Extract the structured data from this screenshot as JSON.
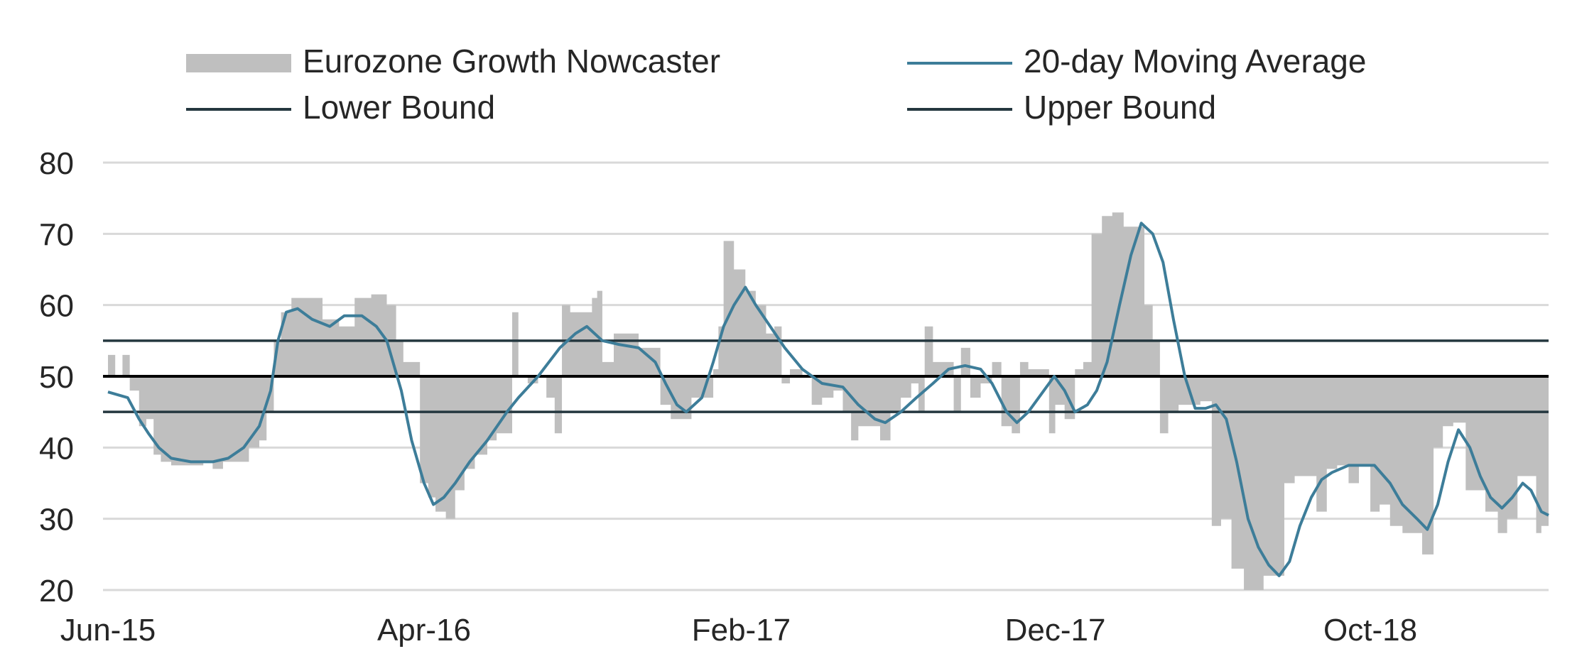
{
  "chart_data": {
    "type": "area",
    "title": "",
    "xlabel": "",
    "ylabel": "",
    "ylim": [
      20,
      80
    ],
    "yticks": [
      20,
      30,
      40,
      50,
      60,
      70,
      80
    ],
    "xlim": [
      "2015-06-01",
      "2019-02-28"
    ],
    "xticks": [
      {
        "date": "2015-06-01",
        "label": "Jun-15"
      },
      {
        "date": "2016-04-01",
        "label": "Apr-16"
      },
      {
        "date": "2017-02-01",
        "label": "Feb-17"
      },
      {
        "date": "2017-12-01",
        "label": "Dec-17"
      },
      {
        "date": "2018-10-01",
        "label": "Oct-18"
      }
    ],
    "grid": "horizontal",
    "legend_position": "top",
    "area_baseline": 50,
    "series": [
      {
        "name": "Eurozone Growth Nowcaster",
        "kind": "area",
        "color": "#bfbfbf",
        "points": [
          [
            "2015-06-01",
            53
          ],
          [
            "2015-06-08",
            50
          ],
          [
            "2015-06-15",
            53
          ],
          [
            "2015-06-22",
            48
          ],
          [
            "2015-07-01",
            43
          ],
          [
            "2015-07-08",
            44
          ],
          [
            "2015-07-15",
            39
          ],
          [
            "2015-07-22",
            38
          ],
          [
            "2015-08-01",
            37.5
          ],
          [
            "2015-08-15",
            37.5
          ],
          [
            "2015-09-01",
            38
          ],
          [
            "2015-09-10",
            37
          ],
          [
            "2015-09-20",
            38
          ],
          [
            "2015-10-01",
            38
          ],
          [
            "2015-10-15",
            40
          ],
          [
            "2015-10-25",
            41
          ],
          [
            "2015-11-01",
            45
          ],
          [
            "2015-11-08",
            55
          ],
          [
            "2015-11-15",
            59
          ],
          [
            "2015-11-25",
            61
          ],
          [
            "2015-12-10",
            61
          ],
          [
            "2015-12-25",
            58
          ],
          [
            "2016-01-10",
            57
          ],
          [
            "2016-01-25",
            61
          ],
          [
            "2016-02-10",
            61.5
          ],
          [
            "2016-02-25",
            60
          ],
          [
            "2016-03-05",
            55
          ],
          [
            "2016-03-12",
            52
          ],
          [
            "2016-03-20",
            52
          ],
          [
            "2016-03-28",
            35
          ],
          [
            "2016-04-05",
            33
          ],
          [
            "2016-04-12",
            31
          ],
          [
            "2016-04-22",
            30
          ],
          [
            "2016-05-01",
            34
          ],
          [
            "2016-05-10",
            37
          ],
          [
            "2016-05-20",
            39
          ],
          [
            "2016-06-01",
            41
          ],
          [
            "2016-06-10",
            42
          ],
          [
            "2016-06-18",
            42
          ],
          [
            "2016-06-25",
            59
          ],
          [
            "2016-07-01",
            50
          ],
          [
            "2016-07-10",
            49
          ],
          [
            "2016-07-20",
            50
          ],
          [
            "2016-07-28",
            47
          ],
          [
            "2016-08-05",
            42
          ],
          [
            "2016-08-12",
            60
          ],
          [
            "2016-08-20",
            59
          ],
          [
            "2016-09-01",
            59
          ],
          [
            "2016-09-10",
            61
          ],
          [
            "2016-09-15",
            62
          ],
          [
            "2016-09-20",
            52
          ],
          [
            "2016-10-01",
            56
          ],
          [
            "2016-10-15",
            56
          ],
          [
            "2016-10-25",
            54
          ],
          [
            "2016-11-05",
            54
          ],
          [
            "2016-11-15",
            46
          ],
          [
            "2016-11-25",
            44
          ],
          [
            "2016-12-05",
            44
          ],
          [
            "2016-12-15",
            47
          ],
          [
            "2016-12-25",
            47
          ],
          [
            "2017-01-05",
            51
          ],
          [
            "2017-01-10",
            57
          ],
          [
            "2017-01-15",
            69
          ],
          [
            "2017-01-25",
            65
          ],
          [
            "2017-02-05",
            62
          ],
          [
            "2017-02-15",
            60
          ],
          [
            "2017-02-25",
            56
          ],
          [
            "2017-03-05",
            57
          ],
          [
            "2017-03-12",
            49
          ],
          [
            "2017-03-20",
            51
          ],
          [
            "2017-04-01",
            50
          ],
          [
            "2017-04-10",
            46
          ],
          [
            "2017-04-20",
            47
          ],
          [
            "2017-05-01",
            48
          ],
          [
            "2017-05-10",
            45
          ],
          [
            "2017-05-18",
            41
          ],
          [
            "2017-05-25",
            43
          ],
          [
            "2017-06-05",
            43
          ],
          [
            "2017-06-15",
            41
          ],
          [
            "2017-06-25",
            45
          ],
          [
            "2017-07-05",
            47
          ],
          [
            "2017-07-15",
            49
          ],
          [
            "2017-07-22",
            45
          ],
          [
            "2017-07-28",
            57
          ],
          [
            "2017-08-05",
            52
          ],
          [
            "2017-08-15",
            52
          ],
          [
            "2017-08-25",
            45
          ],
          [
            "2017-09-01",
            54
          ],
          [
            "2017-09-10",
            47
          ],
          [
            "2017-09-20",
            49
          ],
          [
            "2017-10-01",
            52
          ],
          [
            "2017-10-10",
            43
          ],
          [
            "2017-10-20",
            42
          ],
          [
            "2017-10-28",
            52
          ],
          [
            "2017-11-05",
            51
          ],
          [
            "2017-11-15",
            51
          ],
          [
            "2017-11-25",
            42
          ],
          [
            "2017-12-01",
            46
          ],
          [
            "2017-12-10",
            44
          ],
          [
            "2017-12-20",
            51
          ],
          [
            "2017-12-28",
            52
          ],
          [
            "2018-01-05",
            70
          ],
          [
            "2018-01-15",
            72.5
          ],
          [
            "2018-01-25",
            73
          ],
          [
            "2018-02-05",
            71
          ],
          [
            "2018-02-15",
            71
          ],
          [
            "2018-02-25",
            60
          ],
          [
            "2018-03-05",
            55
          ],
          [
            "2018-03-12",
            42
          ],
          [
            "2018-03-20",
            45
          ],
          [
            "2018-03-30",
            46
          ],
          [
            "2018-04-10",
            46
          ],
          [
            "2018-04-20",
            46.5
          ],
          [
            "2018-05-01",
            29
          ],
          [
            "2018-05-10",
            30
          ],
          [
            "2018-05-20",
            23
          ],
          [
            "2018-06-01",
            20
          ],
          [
            "2018-06-10",
            20
          ],
          [
            "2018-06-20",
            22
          ],
          [
            "2018-07-01",
            22
          ],
          [
            "2018-07-10",
            35
          ],
          [
            "2018-07-20",
            36
          ],
          [
            "2018-07-30",
            36
          ],
          [
            "2018-08-10",
            31
          ],
          [
            "2018-08-20",
            37
          ],
          [
            "2018-08-30",
            37.5
          ],
          [
            "2018-09-10",
            35
          ],
          [
            "2018-09-20",
            37.5
          ],
          [
            "2018-10-01",
            31
          ],
          [
            "2018-10-10",
            32
          ],
          [
            "2018-10-20",
            29
          ],
          [
            "2018-11-01",
            28
          ],
          [
            "2018-11-10",
            28
          ],
          [
            "2018-11-20",
            25
          ],
          [
            "2018-12-01",
            40
          ],
          [
            "2018-12-10",
            43
          ],
          [
            "2018-12-20",
            43.5
          ],
          [
            "2019-01-01",
            34
          ],
          [
            "2019-01-10",
            34
          ],
          [
            "2019-01-20",
            31
          ],
          [
            "2019-02-01",
            28
          ],
          [
            "2019-02-10",
            30
          ],
          [
            "2019-02-20",
            36
          ],
          [
            "2019-03-01",
            36
          ],
          [
            "2019-03-10",
            28
          ],
          [
            "2019-03-15",
            29
          ],
          [
            "2019-03-20",
            29
          ]
        ]
      },
      {
        "name": "20-day Moving Average",
        "kind": "line",
        "color": "#3d7d99",
        "points": [
          [
            "2015-06-01",
            47.8
          ],
          [
            "2015-06-20",
            47
          ],
          [
            "2015-07-01",
            44
          ],
          [
            "2015-07-10",
            42
          ],
          [
            "2015-07-20",
            40
          ],
          [
            "2015-08-01",
            38.5
          ],
          [
            "2015-08-20",
            38
          ],
          [
            "2015-09-10",
            38
          ],
          [
            "2015-09-25",
            38.5
          ],
          [
            "2015-10-10",
            40
          ],
          [
            "2015-10-25",
            43
          ],
          [
            "2015-11-05",
            48
          ],
          [
            "2015-11-12",
            55
          ],
          [
            "2015-11-20",
            59
          ],
          [
            "2015-12-01",
            59.5
          ],
          [
            "2015-12-15",
            58
          ],
          [
            "2016-01-01",
            57
          ],
          [
            "2016-01-15",
            58.5
          ],
          [
            "2016-02-01",
            58.5
          ],
          [
            "2016-02-15",
            57
          ],
          [
            "2016-02-25",
            55
          ],
          [
            "2016-03-10",
            48
          ],
          [
            "2016-03-20",
            41
          ],
          [
            "2016-04-01",
            35
          ],
          [
            "2016-04-10",
            32
          ],
          [
            "2016-04-20",
            33
          ],
          [
            "2016-05-01",
            35
          ],
          [
            "2016-05-15",
            38
          ],
          [
            "2016-06-01",
            41
          ],
          [
            "2016-06-20",
            45
          ],
          [
            "2016-07-01",
            47
          ],
          [
            "2016-07-20",
            50
          ],
          [
            "2016-08-10",
            54
          ],
          [
            "2016-08-25",
            56
          ],
          [
            "2016-09-05",
            57
          ],
          [
            "2016-09-20",
            55
          ],
          [
            "2016-10-05",
            54.5
          ],
          [
            "2016-10-25",
            54
          ],
          [
            "2016-11-10",
            52
          ],
          [
            "2016-11-20",
            49
          ],
          [
            "2016-12-01",
            46
          ],
          [
            "2016-12-10",
            45
          ],
          [
            "2016-12-25",
            47
          ],
          [
            "2017-01-05",
            52
          ],
          [
            "2017-01-15",
            57
          ],
          [
            "2017-01-25",
            60
          ],
          [
            "2017-02-05",
            62.5
          ],
          [
            "2017-02-15",
            60
          ],
          [
            "2017-03-01",
            57
          ],
          [
            "2017-03-15",
            54
          ],
          [
            "2017-04-01",
            51
          ],
          [
            "2017-04-20",
            49
          ],
          [
            "2017-05-10",
            48.5
          ],
          [
            "2017-05-25",
            46
          ],
          [
            "2017-06-10",
            44
          ],
          [
            "2017-06-20",
            43.5
          ],
          [
            "2017-07-05",
            45
          ],
          [
            "2017-07-20",
            47
          ],
          [
            "2017-08-05",
            49
          ],
          [
            "2017-08-20",
            51
          ],
          [
            "2017-09-05",
            51.5
          ],
          [
            "2017-09-20",
            51
          ],
          [
            "2017-10-01",
            49
          ],
          [
            "2017-10-15",
            45
          ],
          [
            "2017-10-25",
            43.5
          ],
          [
            "2017-11-05",
            45
          ],
          [
            "2017-11-20",
            48
          ],
          [
            "2017-11-30",
            50
          ],
          [
            "2017-12-10",
            48
          ],
          [
            "2017-12-20",
            45
          ],
          [
            "2018-01-01",
            46
          ],
          [
            "2018-01-10",
            48
          ],
          [
            "2018-01-20",
            52
          ],
          [
            "2018-02-01",
            60
          ],
          [
            "2018-02-12",
            67
          ],
          [
            "2018-02-22",
            71.5
          ],
          [
            "2018-03-05",
            70
          ],
          [
            "2018-03-15",
            66
          ],
          [
            "2018-03-25",
            58
          ],
          [
            "2018-04-05",
            50
          ],
          [
            "2018-04-15",
            45.5
          ],
          [
            "2018-04-25",
            45.5
          ],
          [
            "2018-05-05",
            46
          ],
          [
            "2018-05-15",
            44
          ],
          [
            "2018-05-25",
            38
          ],
          [
            "2018-06-05",
            30
          ],
          [
            "2018-06-15",
            26
          ],
          [
            "2018-06-25",
            23.5
          ],
          [
            "2018-07-05",
            22
          ],
          [
            "2018-07-15",
            24
          ],
          [
            "2018-07-25",
            29
          ],
          [
            "2018-08-05",
            33
          ],
          [
            "2018-08-15",
            35.5
          ],
          [
            "2018-08-25",
            36.5
          ],
          [
            "2018-09-10",
            37.5
          ],
          [
            "2018-09-25",
            37.5
          ],
          [
            "2018-10-05",
            37.5
          ],
          [
            "2018-10-20",
            35
          ],
          [
            "2018-11-01",
            32
          ],
          [
            "2018-11-15",
            30
          ],
          [
            "2018-11-25",
            28.5
          ],
          [
            "2018-12-05",
            32
          ],
          [
            "2018-12-15",
            38
          ],
          [
            "2018-12-25",
            42.5
          ],
          [
            "2019-01-05",
            40
          ],
          [
            "2019-01-15",
            36
          ],
          [
            "2019-01-25",
            33
          ],
          [
            "2019-02-05",
            31.5
          ],
          [
            "2019-02-15",
            33
          ],
          [
            "2019-02-25",
            35
          ],
          [
            "2019-03-05",
            34
          ],
          [
            "2019-03-15",
            31
          ],
          [
            "2019-03-25",
            30.5
          ]
        ]
      },
      {
        "name": "Lower Bound",
        "kind": "hline",
        "color": "#24373f",
        "value": 45
      },
      {
        "name": "Upper Bound",
        "kind": "hline",
        "color": "#24373f",
        "value": 55
      }
    ],
    "reference_line": {
      "value": 50,
      "color": "#000000"
    }
  }
}
